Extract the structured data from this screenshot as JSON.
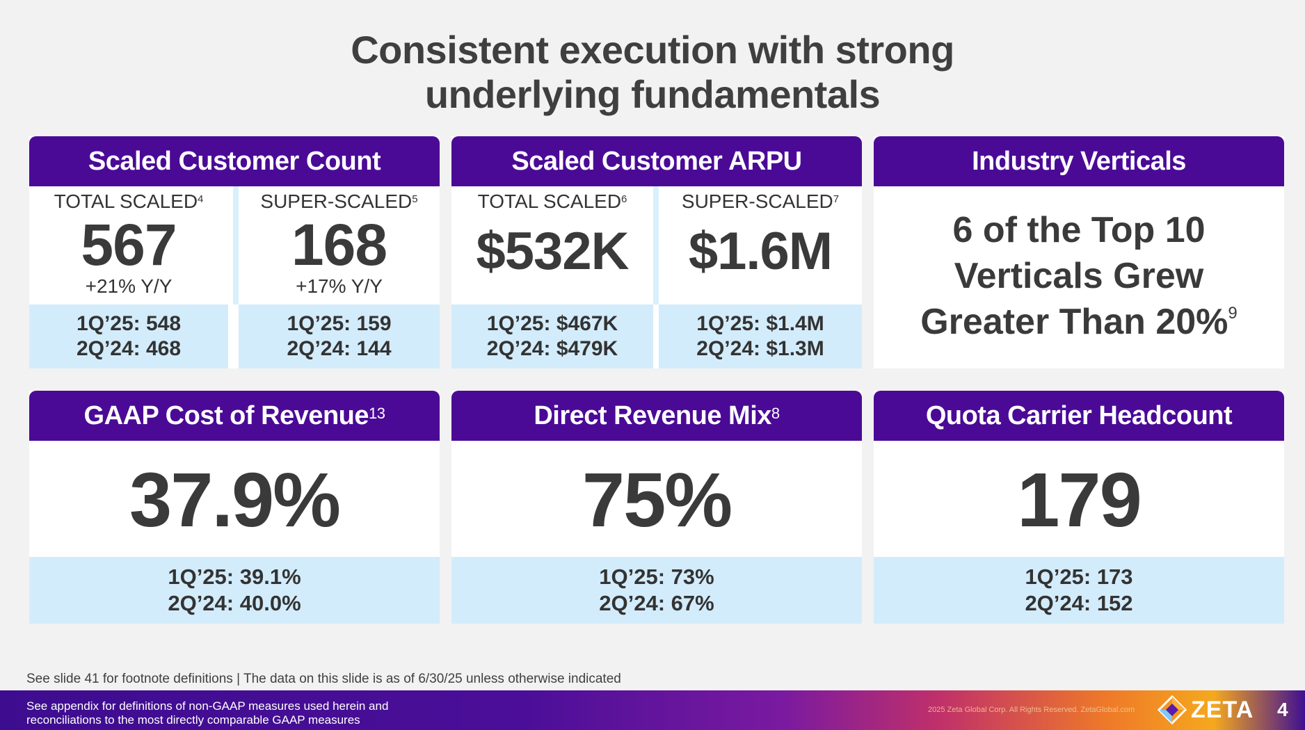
{
  "title_line1": "Consistent execution with strong",
  "title_line2": "underlying fundamentals",
  "cards": {
    "customer_count": {
      "title": "Scaled Customer Count",
      "left": {
        "label": "TOTAL SCALED",
        "sup": "4",
        "value": "567",
        "growth": "+21% Y/Y",
        "prev1": "1Q’25: 548",
        "prev2": "2Q’24: 468"
      },
      "right": {
        "label": "SUPER-SCALED",
        "sup": "5",
        "value": "168",
        "growth": "+17% Y/Y",
        "prev1": "1Q’25: 159",
        "prev2": "2Q’24: 144"
      }
    },
    "arpu": {
      "title": "Scaled Customer ARPU",
      "left": {
        "label": "TOTAL SCALED",
        "sup": "6",
        "value": "$532K",
        "prev1": "1Q’25: $467K",
        "prev2": "2Q’24: $479K"
      },
      "right": {
        "label": "SUPER-SCALED",
        "sup": "7",
        "value": "$1.6M",
        "prev1": "1Q’25: $1.4M",
        "prev2": "2Q’24: $1.3M"
      }
    },
    "verticals": {
      "title": "Industry Verticals",
      "line1": "6 of the Top 10",
      "line2": "Verticals Grew",
      "line3": "Greater Than 20%",
      "sup": "9"
    },
    "cost_of_revenue": {
      "title": "GAAP Cost of Revenue",
      "sup": "13",
      "value": "37.9%",
      "prev1": "1Q’25: 39.1%",
      "prev2": "2Q’24: 40.0%"
    },
    "direct_revenue": {
      "title": "Direct Revenue Mix",
      "sup": "8",
      "value": "75%",
      "prev1": "1Q’25: 73%",
      "prev2": "2Q’24: 67%"
    },
    "quota_carrier": {
      "title": "Quota Carrier Headcount",
      "value": "179",
      "prev1": "1Q’25: 173",
      "prev2": "2Q’24: 152"
    }
  },
  "footnote_note": "See slide 41 for footnote definitions | The data on this slide is as of 6/30/25 unless otherwise indicated",
  "footer": {
    "disclaimer_line1": "See appendix for definitions of non-GAAP measures used herein and",
    "disclaimer_line2": "reconciliations to the most directly comparable GAAP measures",
    "copyright": "2025 Zeta Global Corp. All Rights Reserved. ZetaGlobal.com",
    "logo_text": "ZETA",
    "page_number": "4"
  },
  "colors": {
    "header_purple": "#4b0a96",
    "light_blue": "#d3ecfb",
    "text_dark": "#3a3a3a"
  }
}
